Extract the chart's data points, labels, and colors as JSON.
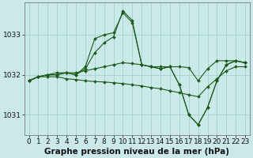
{
  "background_color": "#cce9e9",
  "grid_color": "#aad4d4",
  "line_color": "#1a5c1a",
  "marker_color": "#1a5c1a",
  "xlabel": "Graphe pression niveau de la mer (hPa)",
  "xlabel_fontsize": 7.5,
  "tick_fontsize": 6.5,
  "ylim": [
    1030.5,
    1033.8
  ],
  "xlim": [
    -0.5,
    23.5
  ],
  "yticks": [
    1031,
    1032,
    1033
  ],
  "xticks": [
    0,
    1,
    2,
    3,
    4,
    5,
    6,
    7,
    8,
    9,
    10,
    11,
    12,
    13,
    14,
    15,
    16,
    17,
    18,
    19,
    20,
    21,
    22,
    23
  ],
  "series": [
    [
      1031.85,
      1031.95,
      1031.95,
      1031.95,
      1031.9,
      1031.88,
      1031.85,
      1031.83,
      1031.82,
      1031.8,
      1031.78,
      1031.75,
      1031.72,
      1031.68,
      1031.65,
      1031.6,
      1031.55,
      1031.5,
      1031.45,
      1031.7,
      1031.9,
      1032.1,
      1032.2,
      1032.2
    ],
    [
      1031.85,
      1031.95,
      1032.0,
      1032.05,
      1032.05,
      1032.05,
      1032.1,
      1032.15,
      1032.2,
      1032.25,
      1032.3,
      1032.28,
      1032.25,
      1032.2,
      1032.2,
      1032.2,
      1032.2,
      1032.18,
      1031.85,
      1032.15,
      1032.35,
      1032.35,
      1032.35,
      1032.3
    ],
    [
      1031.85,
      1031.95,
      1032.0,
      1032.0,
      1032.05,
      1032.0,
      1032.2,
      1032.9,
      1033.0,
      1033.05,
      1033.55,
      1033.3,
      1032.25,
      1032.2,
      1032.15,
      1032.2,
      1031.75,
      1031.0,
      1030.75,
      1031.18,
      1031.85,
      1032.25,
      1032.35,
      1032.3
    ],
    [
      1031.85,
      1031.95,
      1032.0,
      1032.0,
      1032.05,
      1032.0,
      1032.15,
      1032.55,
      1032.8,
      1032.95,
      1033.6,
      1033.35,
      1032.25,
      1032.2,
      1032.15,
      1032.2,
      1031.75,
      1031.0,
      1030.75,
      1031.18,
      1031.85,
      1032.25,
      1032.35,
      1032.3
    ]
  ]
}
